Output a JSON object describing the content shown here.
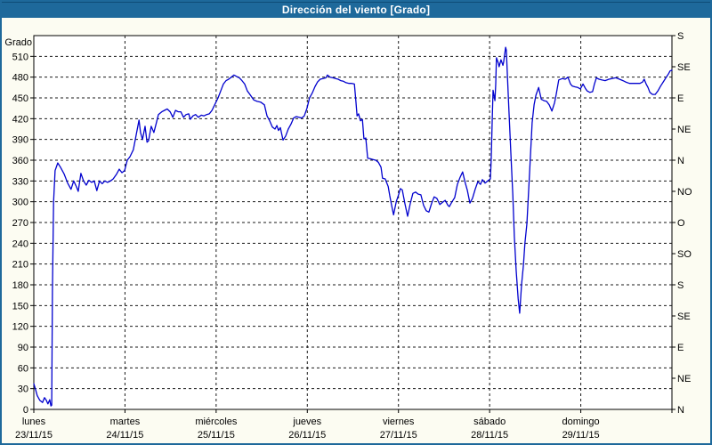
{
  "window": {
    "title": "Dirección del viento [Grado]"
  },
  "colors": {
    "titlebar_bg": "#1E699B",
    "window_border": "#1E699B",
    "page_bg": "#FCFCF2",
    "plot_bg": "#FFFFFF",
    "line": "#0101CE",
    "grid": "#1a1a1a",
    "axis": "#000000"
  },
  "chart_data": {
    "type": "line",
    "title": "Dirección del viento [Grado]",
    "ylabel": "Grado",
    "ylim": [
      0,
      540
    ],
    "xlim_hours": [
      0,
      168
    ],
    "grid": "dashed",
    "legend": "none",
    "y_ticks_left": [
      0,
      30,
      60,
      90,
      120,
      150,
      180,
      210,
      240,
      270,
      300,
      330,
      360,
      390,
      420,
      450,
      480,
      510
    ],
    "y_ticks_right": [
      {
        "value": 0,
        "label": "N"
      },
      {
        "value": 45,
        "label": "NE"
      },
      {
        "value": 90,
        "label": "E"
      },
      {
        "value": 135,
        "label": "SE"
      },
      {
        "value": 180,
        "label": "S"
      },
      {
        "value": 225,
        "label": "SO"
      },
      {
        "value": 270,
        "label": "O"
      },
      {
        "value": 315,
        "label": "NO"
      },
      {
        "value": 360,
        "label": "N"
      },
      {
        "value": 405,
        "label": "NE"
      },
      {
        "value": 450,
        "label": "E"
      },
      {
        "value": 495,
        "label": "SE"
      },
      {
        "value": 540,
        "label": "S"
      }
    ],
    "x_ticks": [
      {
        "hour": 0,
        "name": "lunes",
        "date": "23/11/15"
      },
      {
        "hour": 24,
        "name": "martes",
        "date": "24/11/15"
      },
      {
        "hour": 48,
        "name": "miércoles",
        "date": "25/11/15"
      },
      {
        "hour": 72,
        "name": "jueves",
        "date": "26/11/15"
      },
      {
        "hour": 96,
        "name": "viernes",
        "date": "27/11/15"
      },
      {
        "hour": 120,
        "name": "sábado",
        "date": "28/11/15"
      },
      {
        "hour": 144,
        "name": "domingo",
        "date": "29/11/15"
      }
    ],
    "series": [
      {
        "name": "Dirección del viento",
        "color": "#0101CE",
        "points": [
          [
            0,
            37
          ],
          [
            0.5,
            28
          ],
          [
            0.9,
            20
          ],
          [
            1.6,
            13
          ],
          [
            2.3,
            10
          ],
          [
            2.8,
            17
          ],
          [
            3.3,
            13
          ],
          [
            3.7,
            8
          ],
          [
            4.2,
            14
          ],
          [
            4.5,
            5
          ],
          [
            4.7,
            6
          ],
          [
            4.9,
            170
          ],
          [
            5.2,
            300
          ],
          [
            5.6,
            345
          ],
          [
            6.3,
            356
          ],
          [
            7,
            350
          ],
          [
            8,
            340
          ],
          [
            8.9,
            327
          ],
          [
            9.8,
            318
          ],
          [
            10.5,
            330
          ],
          [
            11.2,
            322
          ],
          [
            11.7,
            315
          ],
          [
            12.4,
            341
          ],
          [
            13.1,
            330
          ],
          [
            13.8,
            324
          ],
          [
            14.5,
            331
          ],
          [
            15.2,
            328
          ],
          [
            15.9,
            330
          ],
          [
            16.6,
            316
          ],
          [
            17.3,
            330
          ],
          [
            18,
            326
          ],
          [
            18.7,
            330
          ],
          [
            19.4,
            328
          ],
          [
            20.2,
            330
          ],
          [
            20.9,
            333
          ],
          [
            21.8,
            340
          ],
          [
            22.5,
            347
          ],
          [
            23.2,
            342
          ],
          [
            23.9,
            345
          ],
          [
            24.6,
            360
          ],
          [
            25.3,
            365
          ],
          [
            26.2,
            375
          ],
          [
            26.9,
            395
          ],
          [
            27.7,
            418
          ],
          [
            28.1,
            400
          ],
          [
            28.6,
            390
          ],
          [
            29.3,
            409
          ],
          [
            29.8,
            386
          ],
          [
            30.2,
            388
          ],
          [
            30.9,
            409
          ],
          [
            31.6,
            400
          ],
          [
            32.3,
            415
          ],
          [
            32.8,
            426
          ],
          [
            33.7,
            430
          ],
          [
            34.4,
            432
          ],
          [
            35.1,
            434
          ],
          [
            35.9,
            430
          ],
          [
            36.6,
            422
          ],
          [
            37.3,
            432
          ],
          [
            38,
            430
          ],
          [
            38.7,
            430
          ],
          [
            39.4,
            422
          ],
          [
            40.1,
            426
          ],
          [
            40.8,
            427
          ],
          [
            41.2,
            419
          ],
          [
            41.9,
            424
          ],
          [
            42.6,
            426
          ],
          [
            43.3,
            422
          ],
          [
            44.1,
            425
          ],
          [
            44.8,
            424
          ],
          [
            45.5,
            426
          ],
          [
            46.2,
            427
          ],
          [
            46.9,
            432
          ],
          [
            47.6,
            440
          ],
          [
            48.5,
            450
          ],
          [
            49.2,
            460
          ],
          [
            49.9,
            470
          ],
          [
            50.6,
            475
          ],
          [
            51.3,
            477
          ],
          [
            52,
            480
          ],
          [
            52.7,
            483
          ],
          [
            53.4,
            481
          ],
          [
            54.1,
            479
          ],
          [
            54.8,
            475
          ],
          [
            55.5,
            470
          ],
          [
            56.2,
            460
          ],
          [
            56.9,
            455
          ],
          [
            57.9,
            447
          ],
          [
            58.8,
            445
          ],
          [
            59.7,
            444
          ],
          [
            60.7,
            440
          ],
          [
            61.4,
            424
          ],
          [
            62.1,
            417
          ],
          [
            62.8,
            408
          ],
          [
            63.5,
            405
          ],
          [
            64,
            410
          ],
          [
            64.4,
            403
          ],
          [
            64.9,
            407
          ],
          [
            65.6,
            389
          ],
          [
            66.3,
            395
          ],
          [
            67,
            405
          ],
          [
            67.7,
            412
          ],
          [
            68.4,
            421
          ],
          [
            69.1,
            423
          ],
          [
            69.8,
            422
          ],
          [
            70.5,
            421
          ],
          [
            71.2,
            424
          ],
          [
            71.9,
            435
          ],
          [
            72.6,
            450
          ],
          [
            73.3,
            457
          ],
          [
            74,
            466
          ],
          [
            74.7,
            473
          ],
          [
            75.4,
            477
          ],
          [
            76.2,
            478
          ],
          [
            76.9,
            479
          ],
          [
            77.3,
            483
          ],
          [
            78,
            480
          ],
          [
            78.7,
            479
          ],
          [
            79.4,
            478
          ],
          [
            80.1,
            477
          ],
          [
            80.8,
            475
          ],
          [
            81.5,
            474
          ],
          [
            82.2,
            472
          ],
          [
            83,
            471
          ],
          [
            83.7,
            471
          ],
          [
            84.4,
            470
          ],
          [
            84.8,
            445
          ],
          [
            85.1,
            424
          ],
          [
            85.5,
            427
          ],
          [
            86,
            417
          ],
          [
            86.5,
            419
          ],
          [
            86.9,
            391
          ],
          [
            87.4,
            392
          ],
          [
            87.9,
            363
          ],
          [
            88.6,
            362
          ],
          [
            89.3,
            361
          ],
          [
            90,
            360
          ],
          [
            90.7,
            357
          ],
          [
            91.4,
            350
          ],
          [
            91.8,
            334
          ],
          [
            92.5,
            333
          ],
          [
            93.3,
            322
          ],
          [
            93.7,
            309
          ],
          [
            94.2,
            295
          ],
          [
            94.7,
            281
          ],
          [
            95.4,
            300
          ],
          [
            96.1,
            311
          ],
          [
            96.5,
            319
          ],
          [
            97,
            317
          ],
          [
            97.7,
            297
          ],
          [
            98.4,
            279
          ],
          [
            99.1,
            297
          ],
          [
            99.8,
            312
          ],
          [
            100.5,
            314
          ],
          [
            101.2,
            311
          ],
          [
            101.9,
            310
          ],
          [
            102.6,
            295
          ],
          [
            103.3,
            287
          ],
          [
            104,
            285
          ],
          [
            104.7,
            297
          ],
          [
            105.4,
            307
          ],
          [
            106.1,
            305
          ],
          [
            106.9,
            296
          ],
          [
            107.6,
            299
          ],
          [
            108.3,
            302
          ],
          [
            109,
            295
          ],
          [
            109.4,
            293
          ],
          [
            110.1,
            300
          ],
          [
            110.8,
            306
          ],
          [
            111.5,
            325
          ],
          [
            112.2,
            335
          ],
          [
            112.9,
            343
          ],
          [
            113.6,
            327
          ],
          [
            114.1,
            317
          ],
          [
            114.8,
            298
          ],
          [
            115.5,
            305
          ],
          [
            116.2,
            318
          ],
          [
            116.9,
            329
          ],
          [
            117.6,
            325
          ],
          [
            118.1,
            332
          ],
          [
            118.8,
            327
          ],
          [
            119.5,
            330
          ],
          [
            120.2,
            333
          ],
          [
            120.4,
            360
          ],
          [
            120.7,
            420
          ],
          [
            120.9,
            461
          ],
          [
            121.4,
            446
          ],
          [
            121.6,
            470
          ],
          [
            121.8,
            508
          ],
          [
            122.3,
            500
          ],
          [
            122.5,
            495
          ],
          [
            123,
            505
          ],
          [
            123.5,
            497
          ],
          [
            123.7,
            502
          ],
          [
            124.2,
            523
          ],
          [
            124.4,
            519
          ],
          [
            124.7,
            480
          ],
          [
            125.1,
            430
          ],
          [
            125.6,
            370
          ],
          [
            126.1,
            310
          ],
          [
            126.5,
            250
          ],
          [
            127,
            200
          ],
          [
            127.5,
            160
          ],
          [
            127.9,
            139
          ],
          [
            128.4,
            180
          ],
          [
            128.9,
            208
          ],
          [
            129.3,
            240
          ],
          [
            129.8,
            268
          ],
          [
            130.5,
            341
          ],
          [
            131.2,
            414
          ],
          [
            131.7,
            440
          ],
          [
            132.2,
            454
          ],
          [
            132.9,
            465
          ],
          [
            133.6,
            448
          ],
          [
            134.3,
            446
          ],
          [
            135,
            445
          ],
          [
            135.7,
            440
          ],
          [
            136.4,
            431
          ],
          [
            137.1,
            443
          ],
          [
            137.5,
            454
          ],
          [
            138.2,
            476
          ],
          [
            139.2,
            478
          ],
          [
            139.9,
            477
          ],
          [
            140.6,
            480
          ],
          [
            141.3,
            470
          ],
          [
            141.8,
            467
          ],
          [
            142.5,
            466
          ],
          [
            143.2,
            465
          ],
          [
            143.9,
            463
          ],
          [
            144.6,
            470
          ],
          [
            145.3,
            463
          ],
          [
            145.7,
            460
          ],
          [
            146.4,
            458
          ],
          [
            147.1,
            459
          ],
          [
            147.6,
            470
          ],
          [
            148.1,
            479
          ],
          [
            148.8,
            477
          ],
          [
            149.5,
            476
          ],
          [
            150.4,
            475
          ],
          [
            151.4,
            477
          ],
          [
            152.3,
            478
          ],
          [
            153.2,
            479
          ],
          [
            154.2,
            477
          ],
          [
            155.1,
            475
          ],
          [
            155.8,
            473
          ],
          [
            156.8,
            471
          ],
          [
            157.7,
            471
          ],
          [
            158.6,
            471
          ],
          [
            159.6,
            471
          ],
          [
            160.3,
            473
          ],
          [
            160.7,
            477
          ],
          [
            161.2,
            470
          ],
          [
            161.7,
            465
          ],
          [
            162.2,
            458
          ],
          [
            162.9,
            455
          ],
          [
            163.6,
            455
          ],
          [
            164.3,
            460
          ],
          [
            165,
            467
          ],
          [
            165.7,
            473
          ],
          [
            166.4,
            479
          ],
          [
            167.1,
            485
          ],
          [
            167.5,
            489
          ],
          [
            168,
            490
          ]
        ]
      }
    ]
  }
}
